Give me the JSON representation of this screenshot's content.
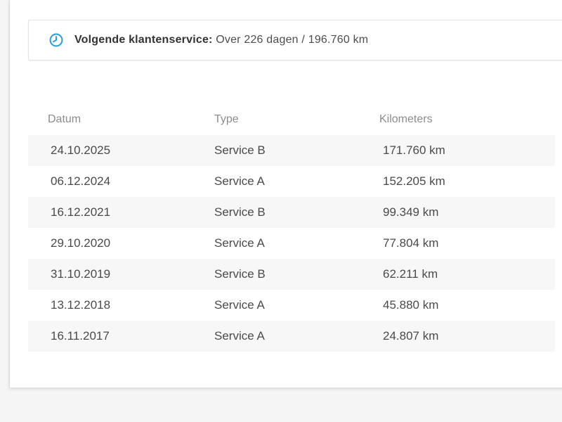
{
  "banner": {
    "icon": "clock-icon",
    "label": "Volgende klantenservice:",
    "value": "Over 226 dagen / 196.760 km"
  },
  "table": {
    "columns": [
      "Datum",
      "Type",
      "Kilometers"
    ],
    "rows": [
      {
        "datum": "24.10.2025",
        "type": "Service B",
        "kilometers": "171.760 km"
      },
      {
        "datum": "06.12.2024",
        "type": "Service A",
        "kilometers": "152.205 km"
      },
      {
        "datum": "16.12.2021",
        "type": "Service B",
        "kilometers": "99.349 km"
      },
      {
        "datum": "29.10.2020",
        "type": "Service A",
        "kilometers": "77.804 km"
      },
      {
        "datum": "31.10.2019",
        "type": "Service B",
        "kilometers": "62.211 km"
      },
      {
        "datum": "13.12.2018",
        "type": "Service A",
        "kilometers": "45.880 km"
      },
      {
        "datum": "16.11.2017",
        "type": "Service A",
        "kilometers": "24.807 km"
      }
    ]
  },
  "colors": {
    "accent": "#2b9fd8",
    "row_stripe": "#f7f7f7",
    "header_text": "#8c8c8c",
    "cell_text": "#4a4a4a",
    "page_background": "#f5f5f5"
  }
}
